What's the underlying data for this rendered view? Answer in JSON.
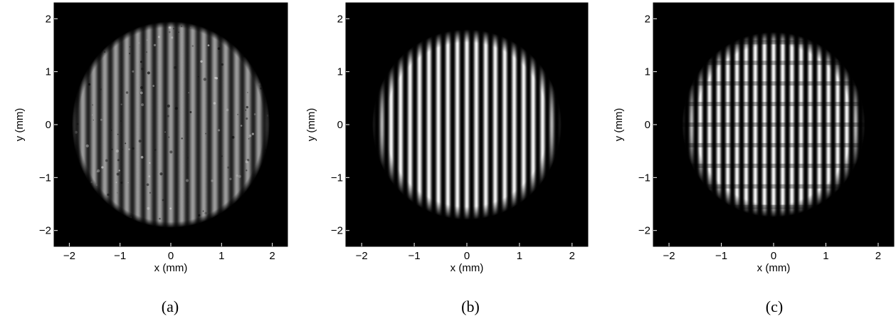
{
  "figure": {
    "panels": [
      {
        "id": "a",
        "caption": "(a)",
        "xlabel": "x (mm)",
        "ylabel": "y (mm)",
        "xticks": [
          "−2",
          "−1",
          "0",
          "1",
          "2"
        ],
        "yticks": [
          "2",
          "1",
          "0",
          "−1",
          "−2"
        ],
        "xlim": [
          -2.3,
          2.3
        ],
        "ylim": [
          -2.3,
          2.3
        ],
        "image": "measured circular fringe pattern (vertical stripes, grainy)",
        "aperture_radius_mm": 1.95,
        "fringe_count": 18,
        "style": "measured"
      },
      {
        "id": "b",
        "caption": "(b)",
        "xlabel": "x (mm)",
        "ylabel": "y (mm)",
        "xticks": [
          "−2",
          "−1",
          "0",
          "1",
          "2"
        ],
        "yticks": [
          "2",
          "1",
          "0",
          "−1",
          "−2"
        ],
        "xlim": [
          -2.3,
          2.3
        ],
        "ylim": [
          -2.3,
          2.3
        ],
        "image": "simulated circular fringe pattern (smooth vertical stripes)",
        "aperture_radius_mm": 1.8,
        "fringe_count": 20,
        "style": "simulated"
      },
      {
        "id": "c",
        "caption": "(c)",
        "xlabel": "x (mm)",
        "ylabel": "y (mm)",
        "xticks": [
          "−2",
          "−1",
          "0",
          "1",
          "2"
        ],
        "yticks": [
          "2",
          "1",
          "0",
          "−1",
          "−2"
        ],
        "xlim": [
          -2.3,
          2.3
        ],
        "ylim": [
          -2.3,
          2.3
        ],
        "image": "simulated circular fringe pattern with speckle modulation",
        "aperture_radius_mm": 1.75,
        "fringe_count": 20,
        "style": "speckled"
      }
    ]
  }
}
